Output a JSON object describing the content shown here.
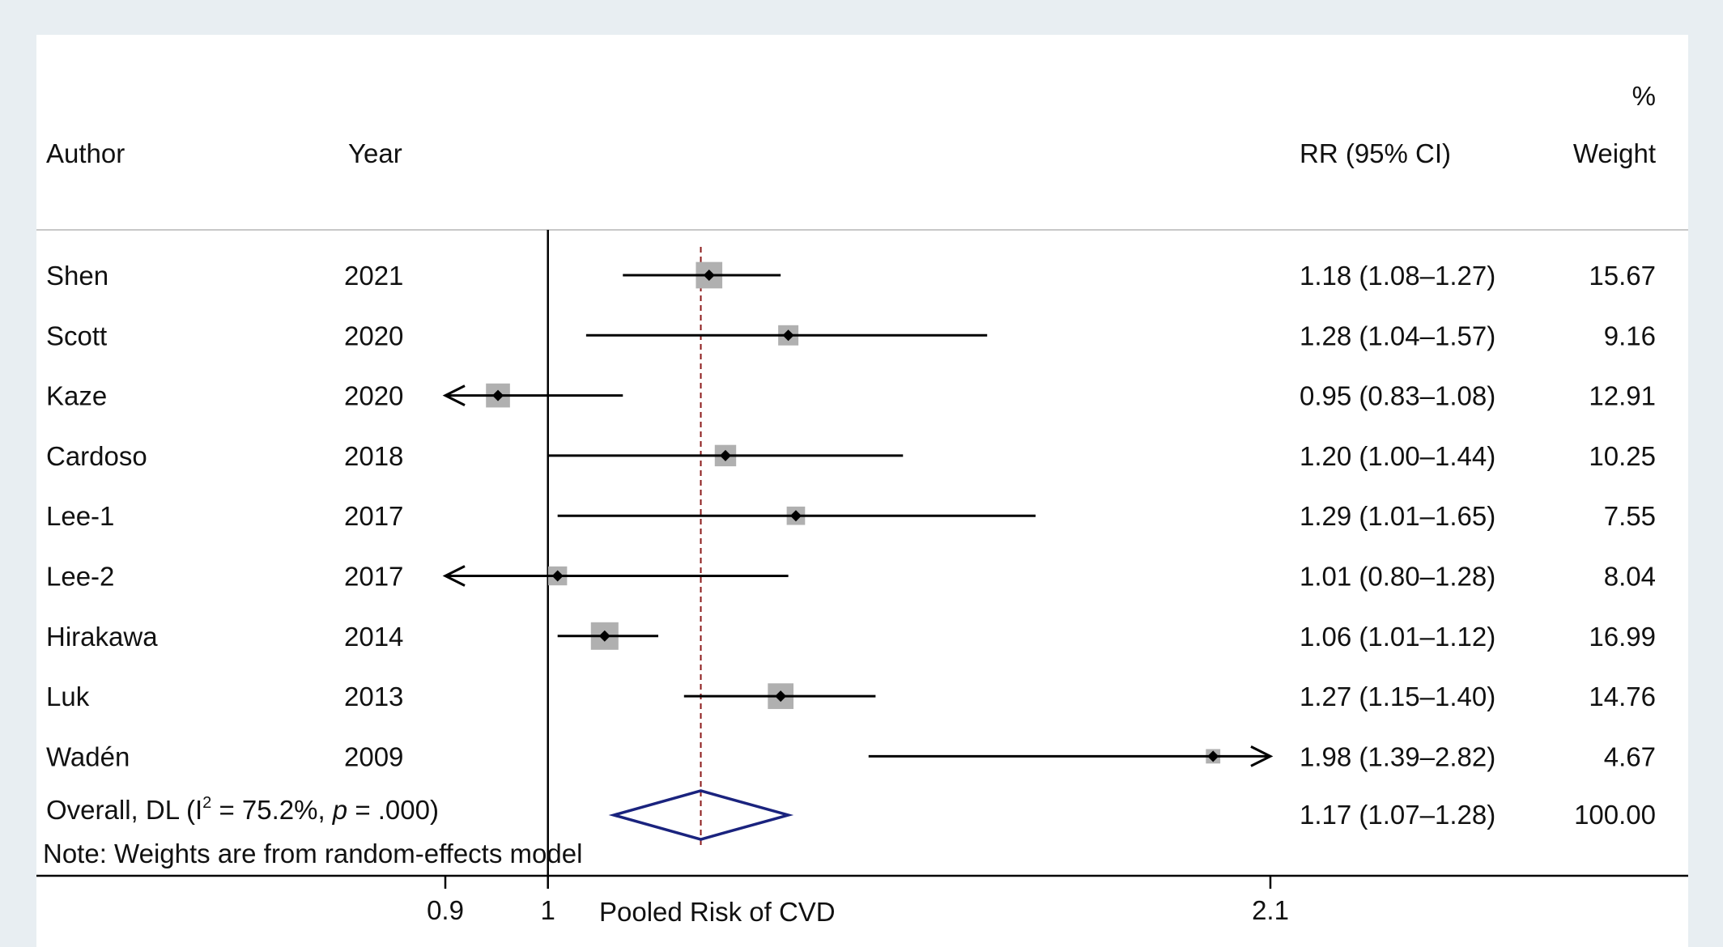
{
  "headers": {
    "author": "Author",
    "year": "Year",
    "rr": "RR (95% CI)",
    "weight_pct": "%",
    "weight": "Weight"
  },
  "overall": {
    "label_prefix": "Overall, DL (I",
    "label_sup": "2",
    "label_mid": " = 75.2%, ",
    "label_p": "p",
    "label_suffix": " = .000)",
    "rr_text": "1.17 (1.07–1.28)",
    "weight": "100.00"
  },
  "note": "Note: Weights are from random-effects model",
  "axis": {
    "ticks": [
      "0.9",
      "1",
      "2.1"
    ],
    "xlabel": "Pooled Risk of CVD"
  },
  "colors": {
    "line": "#000000",
    "marker_box": "#b0b0b0",
    "diamond": "#1a237e",
    "ref_dash": "#8b1a1a",
    "background": "#e8eef2"
  },
  "chart_data": {
    "type": "forest",
    "xlabel": "Pooled Risk of CVD",
    "x_ticks": [
      0.9,
      1,
      2.1
    ],
    "null_line": 1,
    "xlim": [
      0.9,
      2.1
    ],
    "studies": [
      {
        "author": "Shen",
        "year": "2021",
        "rr": 1.18,
        "lo": 1.08,
        "hi": 1.27,
        "weight": 15.67,
        "rr_text": "1.18 (1.08–1.27)",
        "weight_text": "15.67"
      },
      {
        "author": "Scott",
        "year": "2020",
        "rr": 1.28,
        "lo": 1.04,
        "hi": 1.57,
        "weight": 9.16,
        "rr_text": "1.28 (1.04–1.57)",
        "weight_text": "9.16"
      },
      {
        "author": "Kaze",
        "year": "2020",
        "rr": 0.95,
        "lo": 0.83,
        "hi": 1.08,
        "weight": 12.91,
        "rr_text": "0.95 (0.83–1.08)",
        "weight_text": "12.91"
      },
      {
        "author": "Cardoso",
        "year": "2018",
        "rr": 1.2,
        "lo": 1.0,
        "hi": 1.44,
        "weight": 10.25,
        "rr_text": "1.20 (1.00–1.44)",
        "weight_text": "10.25"
      },
      {
        "author": "Lee-1",
        "year": "2017",
        "rr": 1.29,
        "lo": 1.01,
        "hi": 1.65,
        "weight": 7.55,
        "rr_text": "1.29 (1.01–1.65)",
        "weight_text": "7.55"
      },
      {
        "author": "Lee-2",
        "year": "2017",
        "rr": 1.01,
        "lo": 0.8,
        "hi": 1.28,
        "weight": 8.04,
        "rr_text": "1.01 (0.80–1.28)",
        "weight_text": "8.04"
      },
      {
        "author": "Hirakawa",
        "year": "2014",
        "rr": 1.06,
        "lo": 1.01,
        "hi": 1.12,
        "weight": 16.99,
        "rr_text": "1.06 (1.01–1.12)",
        "weight_text": "16.99"
      },
      {
        "author": "Luk",
        "year": "2013",
        "rr": 1.27,
        "lo": 1.15,
        "hi": 1.4,
        "weight": 14.76,
        "rr_text": "1.27 (1.15–1.40)",
        "weight_text": "14.76"
      },
      {
        "author": "Wadén",
        "year": "2009",
        "rr": 1.98,
        "lo": 1.39,
        "hi": 2.82,
        "weight": 4.67,
        "rr_text": "1.98 (1.39–2.82)",
        "weight_text": "4.67"
      }
    ],
    "pooled": {
      "rr": 1.17,
      "lo": 1.07,
      "hi": 1.28,
      "weight": 100.0,
      "i2": 75.2,
      "p": ".000",
      "method": "DL"
    }
  }
}
